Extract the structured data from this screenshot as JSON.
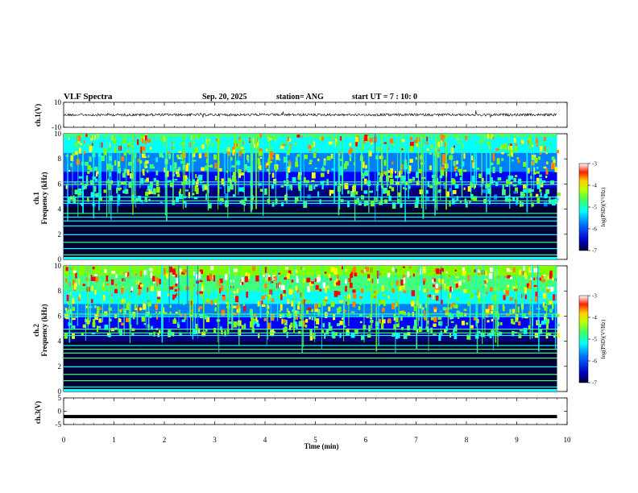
{
  "header": {
    "title": "VLF Spectra",
    "date": "Sep. 20, 2025",
    "station": "station= ANG",
    "start_ut": "start  UT =   7 : 10: 0"
  },
  "chart_data": [
    {
      "type": "line",
      "name": "ch1-waveform",
      "ylabel": "ch.1(V)",
      "ylim": [
        -10,
        10
      ],
      "yticks": [
        "10",
        "-10"
      ],
      "baseline_value": 0,
      "x_range_min": [
        0,
        9.8
      ]
    },
    {
      "type": "heatmap",
      "name": "ch1-spectrogram",
      "ylabel": "ch.1\nFrequency (kHz)",
      "ylabel_line1": "ch.1",
      "ylabel_line2": "Frequency (kHz)",
      "ylim": [
        0,
        10
      ],
      "yticks": [
        "0",
        "2",
        "4",
        "6",
        "8",
        "10"
      ],
      "x_range_min": [
        0,
        9.8
      ],
      "colorbar": {
        "label": "log(PSD)(V²/Hz)",
        "range": [
          -7,
          -3
        ],
        "ticks": [
          "-3",
          "-4",
          "-5",
          "-6",
          "-7"
        ]
      }
    },
    {
      "type": "heatmap",
      "name": "ch2-spectrogram",
      "ylabel": "ch.2\nFrequency (kHz)",
      "ylabel_line1": "ch.2",
      "ylabel_line2": "Frequency (kHz)",
      "ylim": [
        0,
        10
      ],
      "yticks": [
        "0",
        "2",
        "4",
        "6",
        "8",
        "10"
      ],
      "x_range_min": [
        0,
        9.8
      ],
      "colorbar": {
        "label": "log(PSD)(V²/Hz)",
        "range": [
          -7,
          -3
        ],
        "ticks": [
          "-3",
          "-4",
          "-5",
          "-6",
          "-7"
        ]
      }
    },
    {
      "type": "line",
      "name": "ch3-signal",
      "ylabel": "ch.3(V)",
      "ylim": [
        -5,
        5
      ],
      "yticks": [
        "5",
        "0",
        "-5"
      ],
      "constant_value": -2,
      "x_range_min": [
        0,
        9.8
      ]
    }
  ],
  "x_axis": {
    "label": "Time  (min)",
    "range": [
      0,
      10
    ],
    "ticks": [
      "0",
      "1",
      "2",
      "3",
      "4",
      "5",
      "6",
      "7",
      "8",
      "9",
      "10"
    ]
  },
  "colors": {
    "colormap": [
      "#000033",
      "#00007f",
      "#0000ff",
      "#0080ff",
      "#00ffff",
      "#40ff80",
      "#80ff00",
      "#ffff00",
      "#ff8000",
      "#ff0000",
      "#ffffff"
    ],
    "trace": "#000000"
  }
}
